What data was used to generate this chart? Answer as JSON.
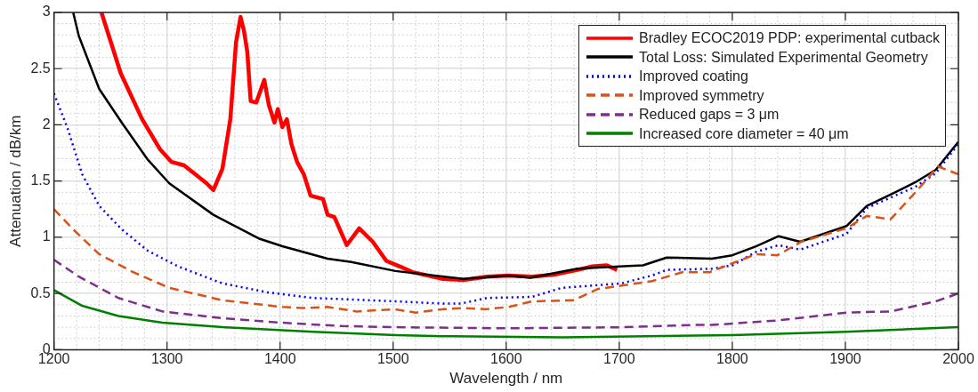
{
  "chart_data": {
    "type": "line",
    "xlabel": "Wavelength / nm",
    "ylabel": "Attenuation / dB/km",
    "xlim": [
      1200,
      2000
    ],
    "ylim": [
      0,
      3
    ],
    "xticks": [
      1200,
      1300,
      1400,
      1500,
      1600,
      1700,
      1800,
      1900,
      2000
    ],
    "yticks": [
      0,
      0.5,
      1,
      1.5,
      2,
      2.5,
      3
    ],
    "grid": true,
    "legend": "top right",
    "series": [
      {
        "name": "Bradley ECOC2019 PDP: experimental cutback",
        "color": "#ff0000",
        "line_style": "solid",
        "x": [
          1242,
          1259,
          1278,
          1294,
          1304,
          1315,
          1325,
          1335,
          1341,
          1349,
          1356,
          1361,
          1365,
          1368,
          1371,
          1374,
          1379,
          1386,
          1390,
          1395,
          1398,
          1402,
          1406,
          1410,
          1415,
          1421,
          1427,
          1438,
          1442,
          1448,
          1459,
          1470,
          1482,
          1494,
          1506,
          1517,
          1544,
          1562,
          1583,
          1602,
          1623,
          1644,
          1663,
          1676,
          1689,
          1698
        ],
        "values": [
          3,
          2.46,
          2.05,
          1.78,
          1.67,
          1.64,
          1.56,
          1.48,
          1.42,
          1.61,
          2.05,
          2.73,
          2.96,
          2.84,
          2.65,
          2.21,
          2.2,
          2.4,
          2.18,
          2.02,
          2.14,
          1.98,
          2.05,
          1.83,
          1.67,
          1.56,
          1.37,
          1.34,
          1.2,
          1.18,
          0.93,
          1.08,
          0.96,
          0.79,
          0.74,
          0.69,
          0.63,
          0.62,
          0.65,
          0.66,
          0.65,
          0.67,
          0.71,
          0.74,
          0.75,
          0.71
        ]
      },
      {
        "name": "Total Loss: Simulated Experimental Geometry",
        "color": "#000000",
        "line_style": "solid",
        "x": [
          1217,
          1222,
          1240,
          1260,
          1283,
          1302,
          1341,
          1381,
          1402,
          1442,
          1463,
          1502,
          1562,
          1602,
          1621,
          1663,
          1700,
          1721,
          1742,
          1782,
          1800,
          1821,
          1841,
          1860,
          1901,
          1919,
          1940,
          1962,
          1980,
          2000
        ],
        "values": [
          3,
          2.79,
          2.32,
          2.02,
          1.69,
          1.48,
          1.2,
          0.99,
          0.92,
          0.81,
          0.78,
          0.7,
          0.63,
          0.66,
          0.64,
          0.72,
          0.74,
          0.75,
          0.82,
          0.81,
          0.84,
          0.92,
          1.01,
          0.96,
          1.1,
          1.28,
          1.38,
          1.49,
          1.6,
          1.85
        ]
      },
      {
        "name": "Improved coating",
        "color": "#0000ff",
        "line_style": "dotted",
        "x": [
          1200,
          1212,
          1225,
          1240,
          1260,
          1283,
          1310,
          1349,
          1389,
          1429,
          1502,
          1544,
          1560,
          1583,
          1623,
          1649,
          1702,
          1729,
          1742,
          1782,
          1800,
          1821,
          1841,
          1860,
          1901,
          1919,
          1962,
          1980,
          2000
        ],
        "values": [
          2.28,
          1.97,
          1.56,
          1.28,
          1.07,
          0.88,
          0.74,
          0.59,
          0.51,
          0.46,
          0.43,
          0.41,
          0.41,
          0.46,
          0.47,
          0.55,
          0.59,
          0.66,
          0.71,
          0.72,
          0.75,
          0.87,
          0.93,
          0.89,
          1.03,
          1.26,
          1.45,
          1.57,
          1.83
        ]
      },
      {
        "name": "Improved symmetry",
        "color": "#d95319",
        "line_style": "dashed",
        "x": [
          1200,
          1217,
          1240,
          1270,
          1302,
          1349,
          1402,
          1421,
          1442,
          1468,
          1501,
          1520,
          1544,
          1562,
          1581,
          1602,
          1623,
          1660,
          1681,
          1702,
          1729,
          1756,
          1780,
          1821,
          1840,
          1861,
          1901,
          1919,
          1940,
          1962,
          1982,
          2000
        ],
        "values": [
          1.25,
          1.07,
          0.85,
          0.69,
          0.55,
          0.44,
          0.38,
          0.37,
          0.38,
          0.34,
          0.36,
          0.33,
          0.36,
          0.37,
          0.36,
          0.38,
          0.43,
          0.44,
          0.54,
          0.57,
          0.61,
          0.69,
          0.69,
          0.85,
          0.84,
          0.96,
          1.08,
          1.19,
          1.16,
          1.4,
          1.63,
          1.56
        ]
      },
      {
        "name": "Reduced gaps = 3 μm",
        "color": "#7e2f8e",
        "line_style": "dashed",
        "x": [
          1200,
          1222,
          1257,
          1296,
          1349,
          1402,
          1455,
          1502,
          1600,
          1702,
          1768,
          1782,
          1840,
          1901,
          1940,
          1980,
          2000
        ],
        "values": [
          0.8,
          0.65,
          0.46,
          0.34,
          0.28,
          0.24,
          0.21,
          0.2,
          0.19,
          0.2,
          0.22,
          0.22,
          0.26,
          0.33,
          0.34,
          0.43,
          0.5
        ]
      },
      {
        "name": "Increased core diameter = 40 μm",
        "color": "#008000",
        "line_style": "solid",
        "x": [
          1200,
          1225,
          1257,
          1296,
          1349,
          1429,
          1502,
          1544,
          1650,
          1800,
          1901,
          2000
        ],
        "values": [
          0.53,
          0.39,
          0.3,
          0.24,
          0.2,
          0.16,
          0.13,
          0.12,
          0.11,
          0.13,
          0.16,
          0.2
        ]
      }
    ]
  }
}
